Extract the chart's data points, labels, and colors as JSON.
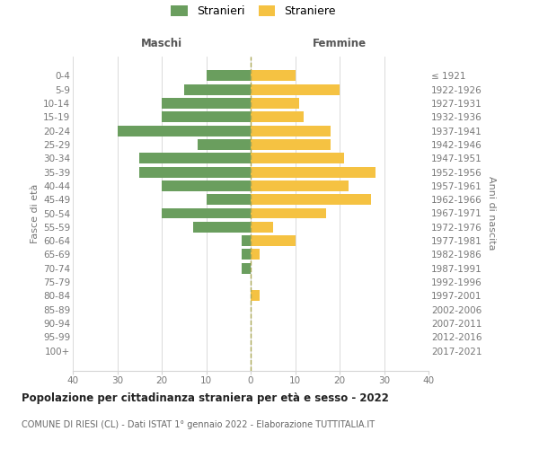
{
  "age_groups": [
    "0-4",
    "5-9",
    "10-14",
    "15-19",
    "20-24",
    "25-29",
    "30-34",
    "35-39",
    "40-44",
    "45-49",
    "50-54",
    "55-59",
    "60-64",
    "65-69",
    "70-74",
    "75-79",
    "80-84",
    "85-89",
    "90-94",
    "95-99",
    "100+"
  ],
  "birth_years": [
    "2017-2021",
    "2012-2016",
    "2007-2011",
    "2002-2006",
    "1997-2001",
    "1992-1996",
    "1987-1991",
    "1982-1986",
    "1977-1981",
    "1972-1976",
    "1967-1971",
    "1962-1966",
    "1957-1961",
    "1952-1956",
    "1947-1951",
    "1942-1946",
    "1937-1941",
    "1932-1936",
    "1927-1931",
    "1922-1926",
    "≤ 1921"
  ],
  "males": [
    10,
    15,
    20,
    20,
    30,
    12,
    25,
    25,
    20,
    10,
    20,
    13,
    2,
    2,
    2,
    0,
    0,
    0,
    0,
    0,
    0
  ],
  "females": [
    10,
    20,
    11,
    12,
    18,
    18,
    21,
    28,
    22,
    27,
    17,
    5,
    10,
    2,
    0,
    0,
    2,
    0,
    0,
    0,
    0
  ],
  "male_color": "#6a9e5e",
  "female_color": "#f5c242",
  "male_label": "Stranieri",
  "female_label": "Straniere",
  "title": "Popolazione per cittadinanza straniera per età e sesso - 2022",
  "subtitle": "COMUNE DI RIESI (CL) - Dati ISTAT 1° gennaio 2022 - Elaborazione TUTTITALIA.IT",
  "ylabel_left": "Fasce di età",
  "ylabel_right": "Anni di nascita",
  "xlabel_left": "Maschi",
  "xlabel_right": "Femmine",
  "xlim": 40,
  "background_color": "#ffffff",
  "grid_color": "#d5d5d5",
  "bar_height": 0.78
}
